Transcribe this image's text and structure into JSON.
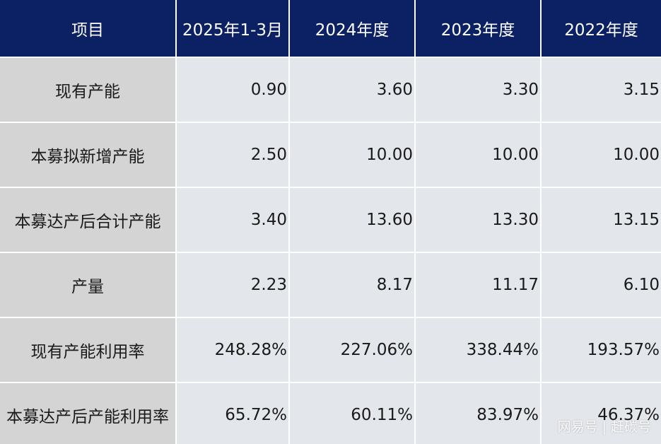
{
  "table": {
    "headers": [
      "项目",
      "2025年1-3月",
      "2024年度",
      "2023年度",
      "2022年度"
    ],
    "rows": [
      {
        "label": "现有产能",
        "values": [
          "0.90",
          "3.60",
          "3.30",
          "3.15"
        ]
      },
      {
        "label": "本募拟新增产能",
        "values": [
          "2.50",
          "10.00",
          "10.00",
          "10.00"
        ]
      },
      {
        "label": "本募达产后合计产能",
        "values": [
          "3.40",
          "13.60",
          "13.30",
          "13.15"
        ]
      },
      {
        "label": "产量",
        "values": [
          "2.23",
          "8.17",
          "11.17",
          "6.10"
        ]
      },
      {
        "label": "现有产能利用率",
        "values": [
          "248.28%",
          "227.06%",
          "338.44%",
          "193.57%"
        ]
      },
      {
        "label": "本募达产后产能利用率",
        "values": [
          "65.72%",
          "60.11%",
          "83.97%",
          "46.37%"
        ]
      }
    ]
  },
  "watermark": "网易号 | 赶碳号",
  "colors": {
    "header_bg": "#0c2064",
    "label_bg": "#d4d4d4",
    "cell_bg": "#e3e6ea"
  }
}
